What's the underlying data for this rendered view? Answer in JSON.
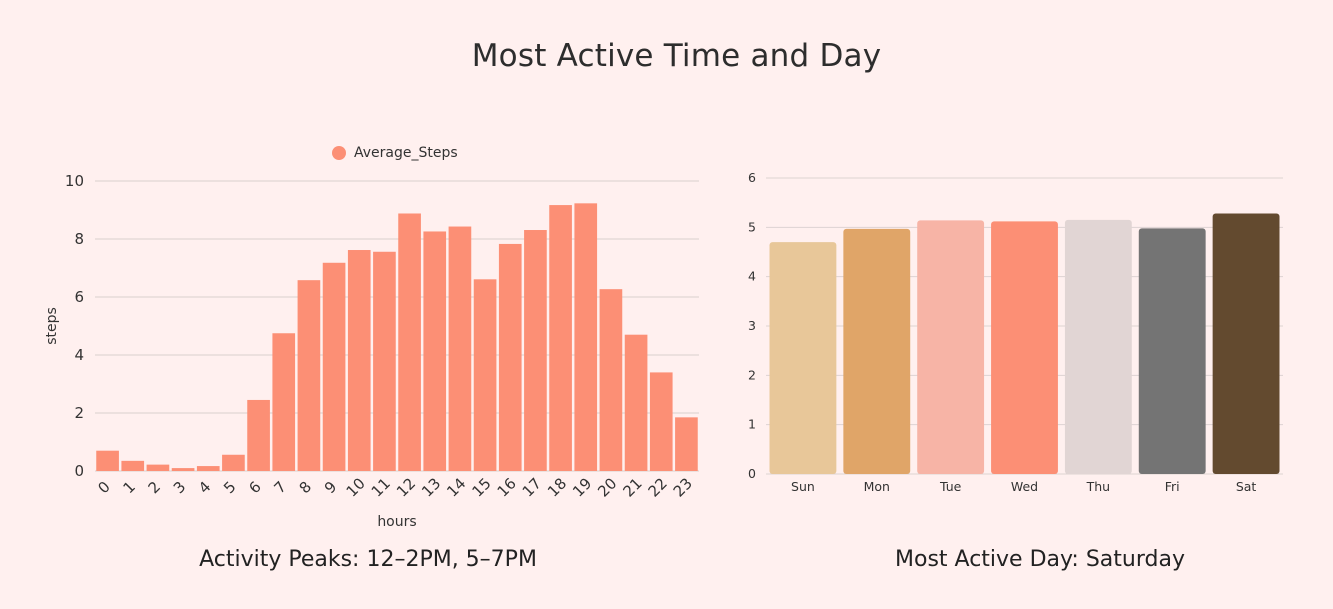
{
  "title": "Most Active Time  and Day",
  "captions": {
    "left": "Activity Peaks: 12–2PM, 5–7PM",
    "right": "Most Active Day: Saturday"
  },
  "chart_data": [
    {
      "type": "bar",
      "title": "",
      "xlabel": "hours",
      "ylabel": "steps",
      "legend": {
        "label": "Average_Steps",
        "position": "top-center"
      },
      "categories": [
        "0",
        "1",
        "2",
        "3",
        "4",
        "5",
        "6",
        "7",
        "8",
        "9",
        "10",
        "11",
        "12",
        "13",
        "14",
        "15",
        "16",
        "17",
        "18",
        "19",
        "20",
        "21",
        "22",
        "23"
      ],
      "series": [
        {
          "name": "Average_Steps",
          "values": [
            0.7,
            0.35,
            0.22,
            0.1,
            0.17,
            0.56,
            2.45,
            4.75,
            6.58,
            7.18,
            7.62,
            7.56,
            8.88,
            8.26,
            8.43,
            6.61,
            7.83,
            8.31,
            9.17,
            9.23,
            6.27,
            4.7,
            3.4,
            1.85
          ]
        }
      ],
      "ylim": [
        0,
        10
      ],
      "yticks": [
        0,
        2,
        4,
        6,
        8,
        10
      ],
      "grid": true,
      "color": "#fc8f75"
    },
    {
      "type": "bar",
      "title": "",
      "xlabel": "",
      "ylabel": "",
      "categories": [
        "Sun",
        "Mon",
        "Tue",
        "Wed",
        "Thu",
        "Fri",
        "Sat"
      ],
      "values": [
        4.7,
        4.97,
        5.14,
        5.12,
        5.15,
        4.98,
        5.28
      ],
      "colors": [
        "#e8c799",
        "#e0a568",
        "#f7b4a6",
        "#fc8f75",
        "#e1d5d4",
        "#747474",
        "#634a2f"
      ],
      "ylim": [
        0,
        6
      ],
      "yticks": [
        0,
        1,
        2,
        3,
        4,
        5,
        6
      ],
      "grid": true
    }
  ]
}
